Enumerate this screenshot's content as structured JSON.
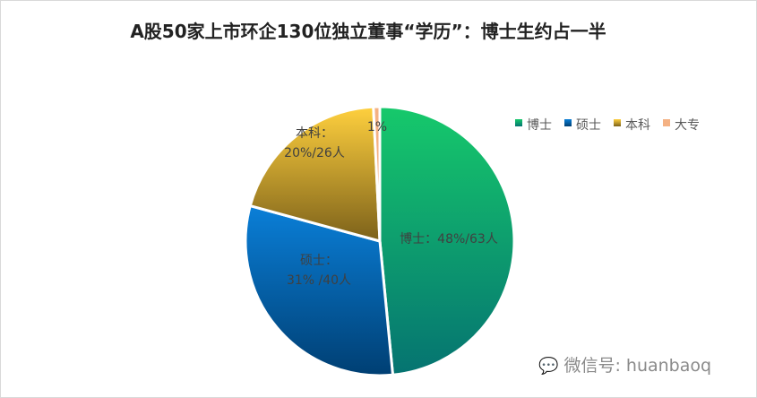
{
  "title": "A股50家上市环企130位独立董事“学历”：博士生约占一半",
  "watermark": "微信号: huanbaoq",
  "chart_data": {
    "type": "pie",
    "title": "A股50家上市环企130位独立董事“学历”：博士生约占一半",
    "categories": [
      "博士",
      "硕士",
      "本科",
      "大专"
    ],
    "values": [
      63,
      40,
      26,
      1
    ],
    "percent_labels": [
      "48%",
      "31%",
      "20%",
      "1%"
    ],
    "data_labels": [
      [
        "博士：48%/63人"
      ],
      [
        "硕士：",
        "31% /40人"
      ],
      [
        "本科：",
        "20%/26人"
      ],
      [
        "1%"
      ]
    ],
    "colors": [
      [
        "#16c96b",
        "#057371"
      ],
      [
        "#0a7fd8",
        "#003f73"
      ],
      [
        "#ffd03e",
        "#7c611a"
      ],
      [
        "#f4b183",
        "#f4b183"
      ]
    ],
    "legend": "top-right",
    "start_angle": "top, clockwise"
  }
}
